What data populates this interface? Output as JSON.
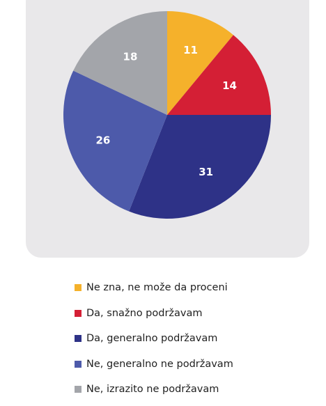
{
  "chart_data": {
    "type": "pie",
    "title": "",
    "slices": [
      {
        "label": "Ne zna, ne može da proceni",
        "value": 11,
        "color": "#f5b12b"
      },
      {
        "label": "Da, snažno podržavam",
        "value": 14,
        "color": "#d41f35"
      },
      {
        "label": "Da, generalno podržavam",
        "value": 31,
        "color": "#2e3287"
      },
      {
        "label": "Ne, generalno ne podržavam",
        "value": 26,
        "color": "#4d5aaa"
      },
      {
        "label": "Ne, izrazito ne podržavam",
        "value": 18,
        "color": "#a3a5aa"
      }
    ],
    "start_angle": "12 o'clock",
    "direction": "clockwise",
    "legend_position": "bottom"
  },
  "colors": {
    "panel_background": "#e9e8ea",
    "slice_label_text": "#ffffff",
    "legend_text": "#1f1f1f"
  }
}
